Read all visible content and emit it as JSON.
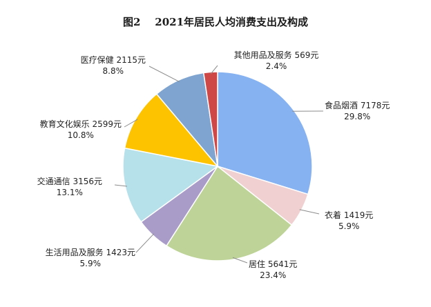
{
  "chart_data": {
    "type": "pie",
    "title": "图2    2021年居民人均消费支出及构成",
    "start_angle_deg": 0,
    "direction": "clockwise",
    "slices": [
      {
        "label": "食品烟酒",
        "amount": "7178元",
        "value": 7178,
        "percent": "29.8%",
        "color": "#86b2f2"
      },
      {
        "label": "衣着",
        "amount": "1419元",
        "value": 1419,
        "percent": "5.9%",
        "color": "#f0d0d0"
      },
      {
        "label": "居住",
        "amount": "5641元",
        "value": 5641,
        "percent": "23.4%",
        "color": "#bed397"
      },
      {
        "label": "生活用品及服务",
        "amount": "1423元",
        "value": 1423,
        "percent": "5.9%",
        "color": "#a99cc8"
      },
      {
        "label": "交通通信",
        "amount": "3156元",
        "value": 3156,
        "percent": "13.1%",
        "color": "#b6e0ea"
      },
      {
        "label": "教育文化娱乐",
        "amount": "2599元",
        "value": 2599,
        "percent": "10.8%",
        "color": "#fdc300"
      },
      {
        "label": "医疗保健",
        "amount": "2115元",
        "value": 2115,
        "percent": "8.8%",
        "color": "#7ea4cf"
      },
      {
        "label": "其他用品及服务",
        "amount": "569元",
        "value": 569,
        "percent": "2.4%",
        "color": "#cf4848"
      }
    ]
  }
}
